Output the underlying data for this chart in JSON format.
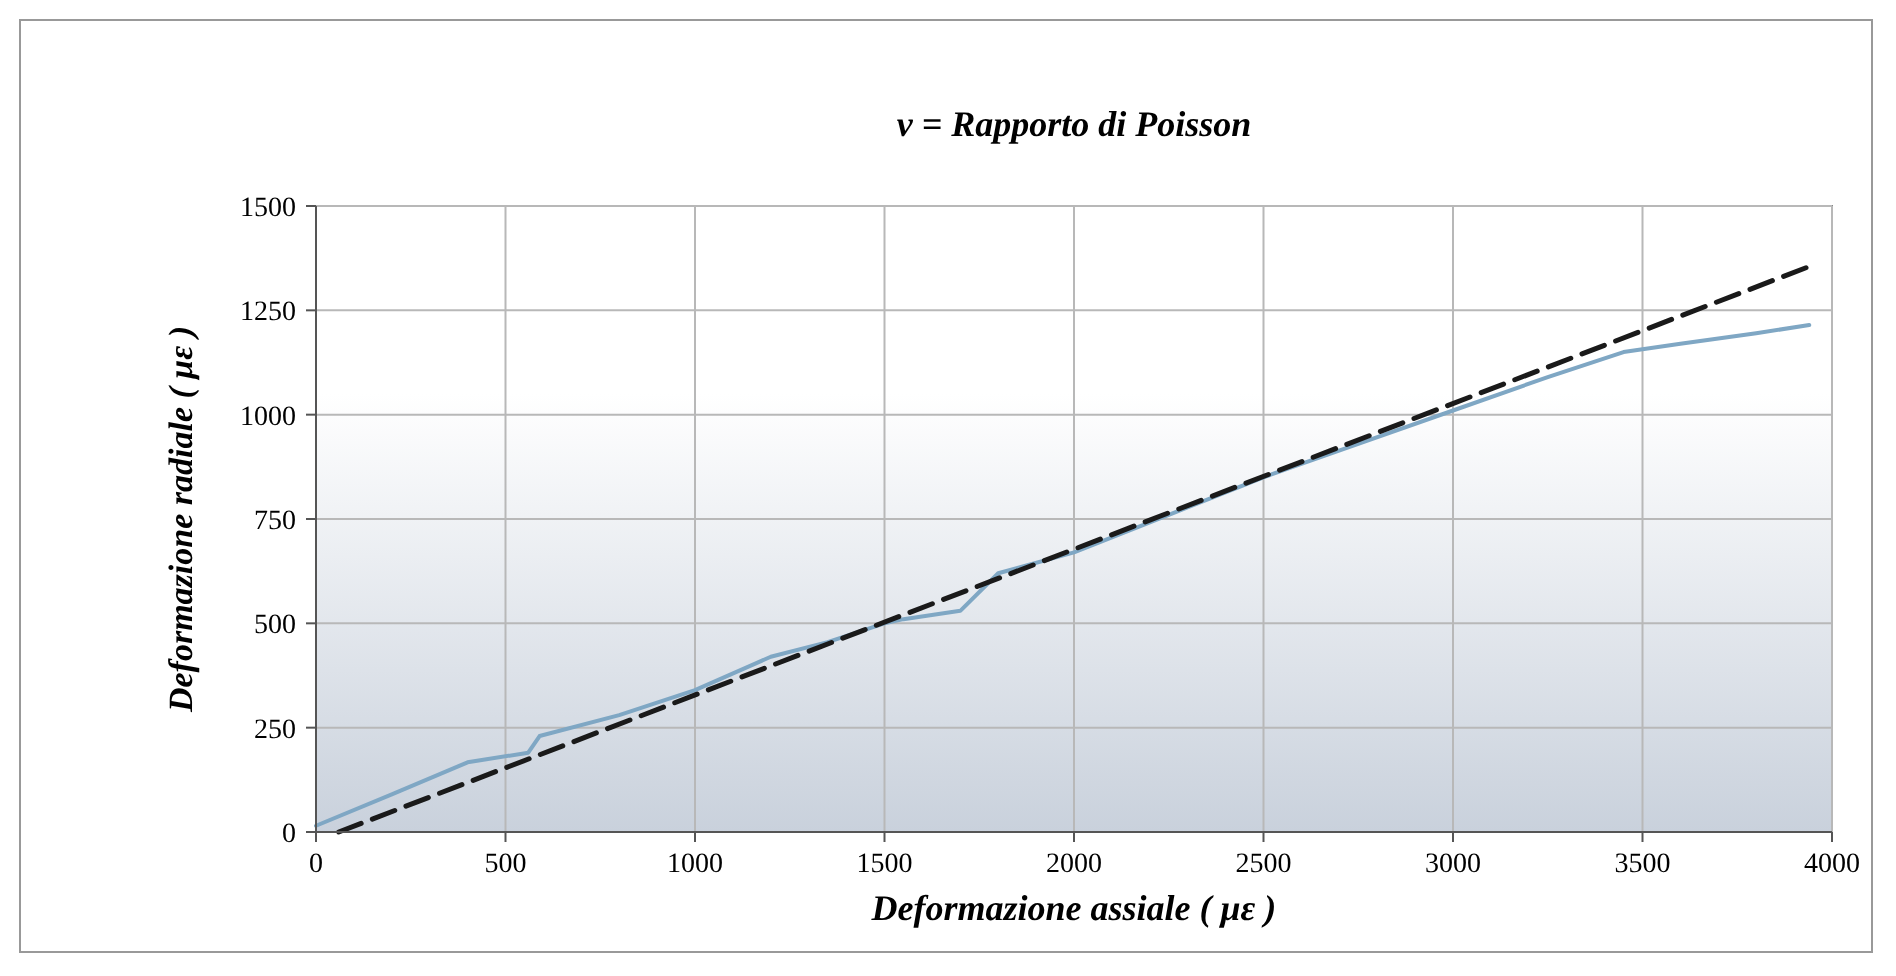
{
  "chart_data": {
    "type": "line",
    "title": "ν = Rapporto di Poisson",
    "xlabel": "Deformazione assiale   ( με )",
    "ylabel": "Deformazione radiale   ( με )",
    "xlim": [
      0,
      4000
    ],
    "ylim": [
      0,
      1500
    ],
    "xticks": [
      0,
      500,
      1000,
      1500,
      2000,
      2500,
      3000,
      3500,
      4000
    ],
    "yticks": [
      0,
      250,
      500,
      750,
      1000,
      1250,
      1500
    ],
    "grid": true,
    "series": [
      {
        "color": "#7fa7c4",
        "line_style": "solid",
        "x": [
          0,
          200,
          400,
          560,
          590,
          800,
          1000,
          1150,
          1200,
          1350,
          1500,
          1550,
          1700,
          1800,
          2000,
          2250,
          2500,
          2750,
          3000,
          3250,
          3450,
          3600,
          3800,
          3940
        ],
        "values": [
          15,
          90,
          167,
          190,
          230,
          280,
          340,
          400,
          420,
          455,
          500,
          510,
          530,
          620,
          670,
          760,
          850,
          930,
          1010,
          1090,
          1150,
          1170,
          1195,
          1215
        ]
      },
      {
        "color": "#1a1a1a",
        "line_style": "dashed",
        "x": [
          60,
          3940
        ],
        "values": [
          0,
          1355
        ]
      }
    ]
  }
}
